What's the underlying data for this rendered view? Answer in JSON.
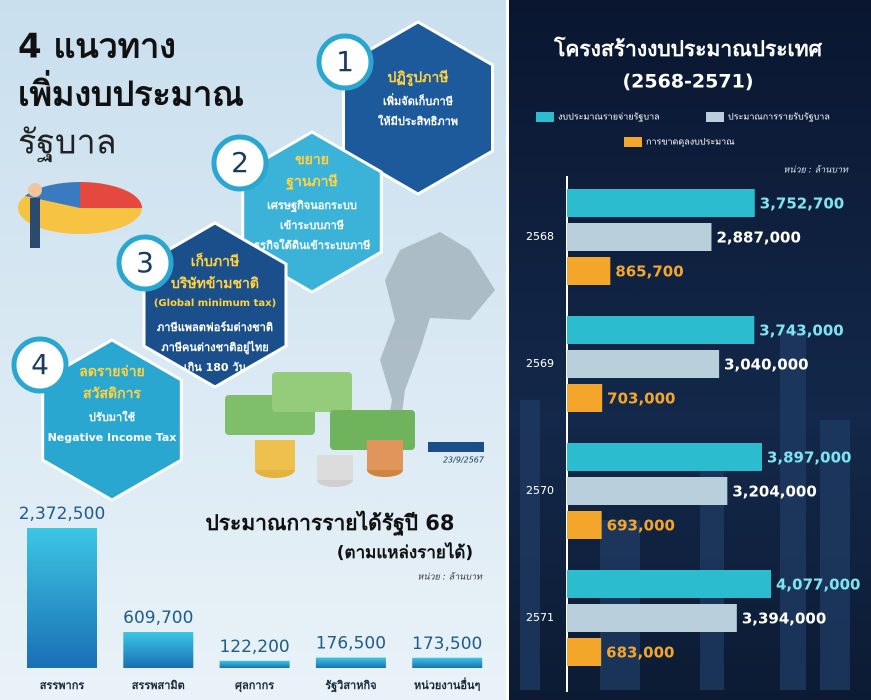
{
  "infographic": {
    "title": [
      "4 แนวทาง",
      "เพิ่มงบประมาณ",
      "รัฐบาล"
    ],
    "approaches": [
      {
        "number": "1",
        "heading": [
          "ปฏิรูปภาษี"
        ],
        "details": [
          "เพิ่มจัดเก็บภาษี",
          "ให้มีประสิทธิภาพ"
        ]
      },
      {
        "number": "2",
        "heading": [
          "ขยาย",
          "ฐานภาษี"
        ],
        "details": [
          "เศรษฐกิจนอกระบบ",
          "เข้าระบบภาษี",
          "ธุรกิจใต้ดินเข้าระบบภาษี"
        ]
      },
      {
        "number": "3",
        "heading": [
          "เก็บภาษี",
          "บริษัทข้ามชาติ"
        ],
        "note": "(Global minimum tax)",
        "details": [
          "ภาษีแพลตฟอร์มต่างชาติ",
          "ภาษีคนต่างชาติอยู่ไทย",
          "เกิน 180 วัน"
        ]
      },
      {
        "number": "4",
        "heading": [
          "ลดรายจ่าย",
          "สวัสดิการ"
        ],
        "details": [
          "ปรับมาใช้",
          "Negative Income Tax"
        ]
      }
    ],
    "source_date": "23/9/2567"
  },
  "chart_data": [
    {
      "type": "bar",
      "title": "ประมาณการรายได้รัฐปี 68",
      "subtitle": "(ตามแหล่งรายได้)",
      "unit": "หน่วย : ล้านบาท",
      "categories": [
        "สรรพากร",
        "สรรพสามิต",
        "ศุลกากร",
        "รัฐวิสาหกิจ",
        "หน่วยงานอื่นๆ"
      ],
      "values": [
        2372500,
        609700,
        122200,
        176500,
        173500
      ],
      "value_labels": [
        "2,372,500",
        "609,700",
        "122,200",
        "176,500",
        "173,500"
      ],
      "color": "#1f8fc8"
    },
    {
      "type": "hbar",
      "title": "โครงสร้างงบประมาณประเทศ",
      "subtitle": "(2568-2571)",
      "unit": "หน่วย : ล้านบาท",
      "categories": [
        "2568",
        "2569",
        "2570",
        "2571"
      ],
      "series": [
        {
          "name": "งบประมาณรายจ่ายรัฐบาล",
          "color": "#2bbcd0",
          "values": [
            3752700,
            3743000,
            3897000,
            4077000
          ],
          "value_labels": [
            "3,752,700",
            "3,743,000",
            "3,897,000",
            "4,077,000"
          ]
        },
        {
          "name": "ประมาณการรายรับรัฐบาล",
          "color": "#b9cfdc",
          "values": [
            2887000,
            3040000,
            3204000,
            3394000
          ],
          "value_labels": [
            "2,887,000",
            "3,040,000",
            "3,204,000",
            "3,394,000"
          ]
        },
        {
          "name": "การขาดดุลงบประมาณ",
          "color": "#f4a62a",
          "values": [
            865700,
            703000,
            693000,
            683000
          ],
          "value_labels": [
            "865,700",
            "703,000",
            "693,000",
            "683,000"
          ]
        }
      ]
    }
  ]
}
